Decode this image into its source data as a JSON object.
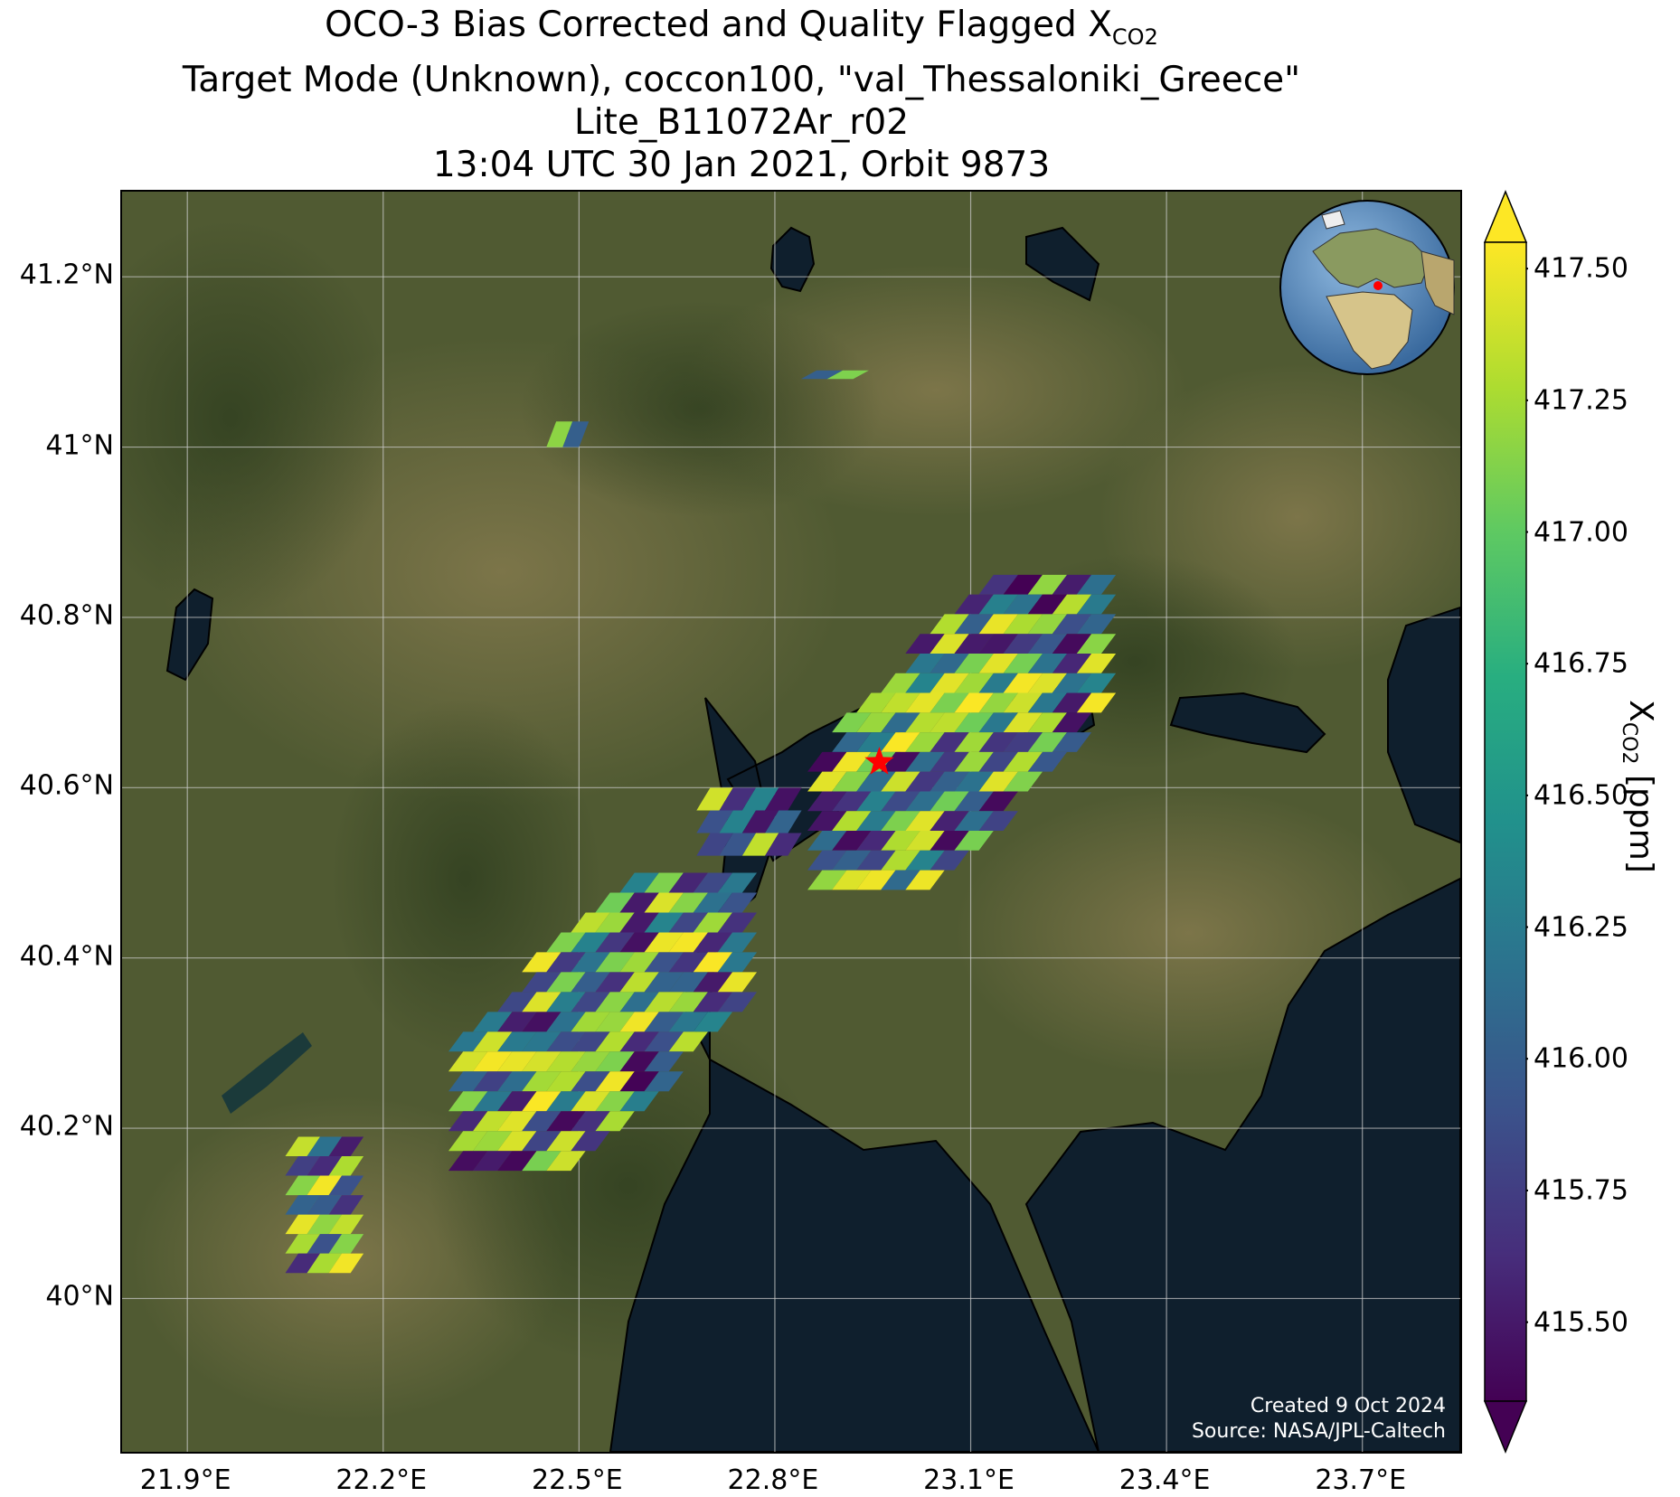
{
  "title": {
    "line1_main": "OCO-3 Bias Corrected and Quality Flagged X",
    "line1_sub": "CO2",
    "line2": "Target Mode (Unknown), coccon100, \"val_Thessaloniki_Greece\"",
    "line3": "Lite_B11072Ar_r02",
    "line4": "13:04 UTC 30 Jan 2021, Orbit 9873"
  },
  "map": {
    "background": "satellite imagery",
    "extent": {
      "lon": [
        21.8,
        23.85
      ],
      "lat": [
        39.82,
        41.3
      ]
    },
    "lat_ticks": [
      {
        "value": 41.2,
        "label": "41.2°N"
      },
      {
        "value": 41.0,
        "label": "41°N"
      },
      {
        "value": 40.8,
        "label": "40.8°N"
      },
      {
        "value": 40.6,
        "label": "40.6°N"
      },
      {
        "value": 40.4,
        "label": "40.4°N"
      },
      {
        "value": 40.2,
        "label": "40.2°N"
      },
      {
        "value": 40.0,
        "label": "40°N"
      }
    ],
    "lon_ticks": [
      {
        "value": 21.9,
        "label": "21.9°E"
      },
      {
        "value": 22.2,
        "label": "22.2°E"
      },
      {
        "value": 22.5,
        "label": "22.5°E"
      },
      {
        "value": 22.8,
        "label": "22.8°E"
      },
      {
        "value": 23.1,
        "label": "23.1°E"
      },
      {
        "value": 23.4,
        "label": "23.4°E"
      },
      {
        "value": 23.7,
        "label": "23.7°E"
      }
    ],
    "target": {
      "lon": 22.96,
      "lat": 40.63,
      "marker": "red-star"
    },
    "colors": {
      "sea": "#0f1f2d",
      "land_dark": "#3f4a2a",
      "land_light": "#8a7a52",
      "grid": "#cccccc",
      "target": "#ff0000"
    },
    "swaths": [
      {
        "lon": [
          22.3,
          22.75
        ],
        "lat": [
          40.15,
          40.5
        ]
      },
      {
        "lon": [
          22.68,
          22.82
        ],
        "lat": [
          40.52,
          40.6
        ]
      },
      {
        "lon": [
          22.85,
          23.3
        ],
        "lat": [
          40.48,
          40.85
        ]
      },
      {
        "lon": [
          22.05,
          22.15
        ],
        "lat": [
          40.03,
          40.19
        ]
      },
      {
        "lon": [
          22.45,
          22.5
        ],
        "lat": [
          41.0,
          41.03
        ]
      },
      {
        "lon": [
          22.84,
          22.92
        ],
        "lat": [
          41.08,
          41.09
        ]
      }
    ],
    "credits": {
      "line1": "Created 9 Oct 2024",
      "line2": "Source: NASA/JPL-Caltech"
    }
  },
  "colorbar": {
    "colormap": "viridis",
    "range": [
      415.35,
      417.55
    ],
    "extend": "both",
    "ticks": [
      {
        "value": 417.5,
        "label": "417.50"
      },
      {
        "value": 417.25,
        "label": "417.25"
      },
      {
        "value": 417.0,
        "label": "417.00"
      },
      {
        "value": 416.75,
        "label": "416.75"
      },
      {
        "value": 416.5,
        "label": "416.50"
      },
      {
        "value": 416.25,
        "label": "416.25"
      },
      {
        "value": 416.0,
        "label": "416.00"
      },
      {
        "value": 415.75,
        "label": "415.75"
      },
      {
        "value": 415.5,
        "label": "415.50"
      }
    ],
    "label_main": "X",
    "label_sub": "CO2",
    "label_unit": " [ppm]"
  },
  "globe_inset": {
    "ocean_color": "#4a7fb5",
    "marker_color": "#ff0000"
  }
}
